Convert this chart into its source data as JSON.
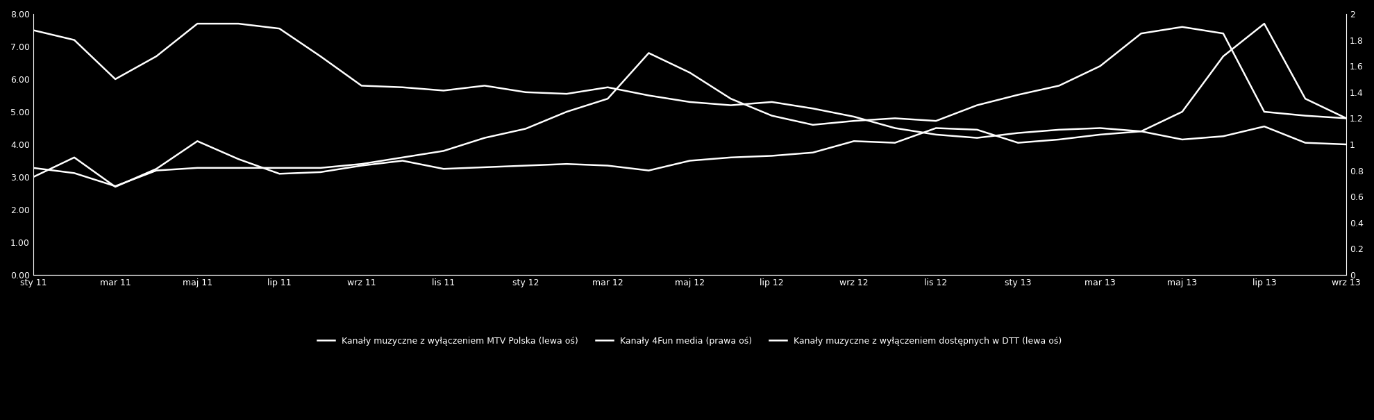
{
  "x_labels": [
    "sty 11",
    "mar 11",
    "maj 11",
    "lip 11",
    "wrz 11",
    "lis 11",
    "sty 12",
    "mar 12",
    "maj 12",
    "lip 12",
    "wrz 12",
    "lis 12",
    "sty 13",
    "mar 13",
    "maj 13",
    "lip 13",
    "wrz 13"
  ],
  "x_indices": [
    0,
    2,
    4,
    6,
    8,
    10,
    12,
    14,
    16,
    18,
    20,
    22,
    24,
    26,
    28,
    30,
    32
  ],
  "line1_label": "Kanały muzyczne z wyłączeniem MTV Polska (lewa oś)",
  "line2_label": "Kanały 4Fun media (prawa oś)",
  "line3_label": "Kanały muzyczne z wyłączeniem dostępnych w DTT (lewa oś)",
  "line1_color": "#ffffff",
  "line2_color": "#ffffff",
  "line3_color": "#ffffff",
  "background_color": "#000000",
  "text_color": "#ffffff",
  "line_width": 1.8,
  "left_ylim": [
    0,
    8
  ],
  "right_ylim": [
    0,
    2
  ],
  "left_yticks": [
    0.0,
    1.0,
    2.0,
    3.0,
    4.0,
    5.0,
    6.0,
    7.0,
    8.0
  ],
  "right_yticks": [
    0,
    0.2,
    0.4,
    0.6,
    0.8,
    1.0,
    1.2,
    1.4,
    1.6,
    1.8,
    2.0
  ],
  "line1_y": [
    7.5,
    7.2,
    6.0,
    6.7,
    7.7,
    7.7,
    7.55,
    6.7,
    5.8,
    5.75,
    5.65,
    5.8,
    5.6,
    5.55,
    5.75,
    5.5,
    5.3,
    5.2,
    5.3,
    5.1,
    4.85,
    4.5,
    4.3,
    4.2,
    4.35,
    4.45,
    4.5,
    4.4,
    5.0,
    6.7,
    7.7,
    5.4,
    4.8
  ],
  "line2_y": [
    0.82,
    0.78,
    0.68,
    0.8,
    0.82,
    0.82,
    0.82,
    0.82,
    0.85,
    0.9,
    0.95,
    1.05,
    1.12,
    1.25,
    1.35,
    1.7,
    1.55,
    1.35,
    1.22,
    1.15,
    1.18,
    1.2,
    1.18,
    1.3,
    1.38,
    1.45,
    1.6,
    1.85,
    1.9,
    1.85,
    1.25,
    1.22,
    1.2
  ],
  "line3_y": [
    3.0,
    3.6,
    2.7,
    3.25,
    4.1,
    3.55,
    3.1,
    3.15,
    3.35,
    3.5,
    3.25,
    3.3,
    3.35,
    3.4,
    3.35,
    3.2,
    3.5,
    3.6,
    3.65,
    3.75,
    4.1,
    4.05,
    4.5,
    4.45,
    4.05,
    4.15,
    4.3,
    4.4,
    4.15,
    4.25,
    4.55,
    4.05,
    4.0
  ],
  "n_points": 33
}
